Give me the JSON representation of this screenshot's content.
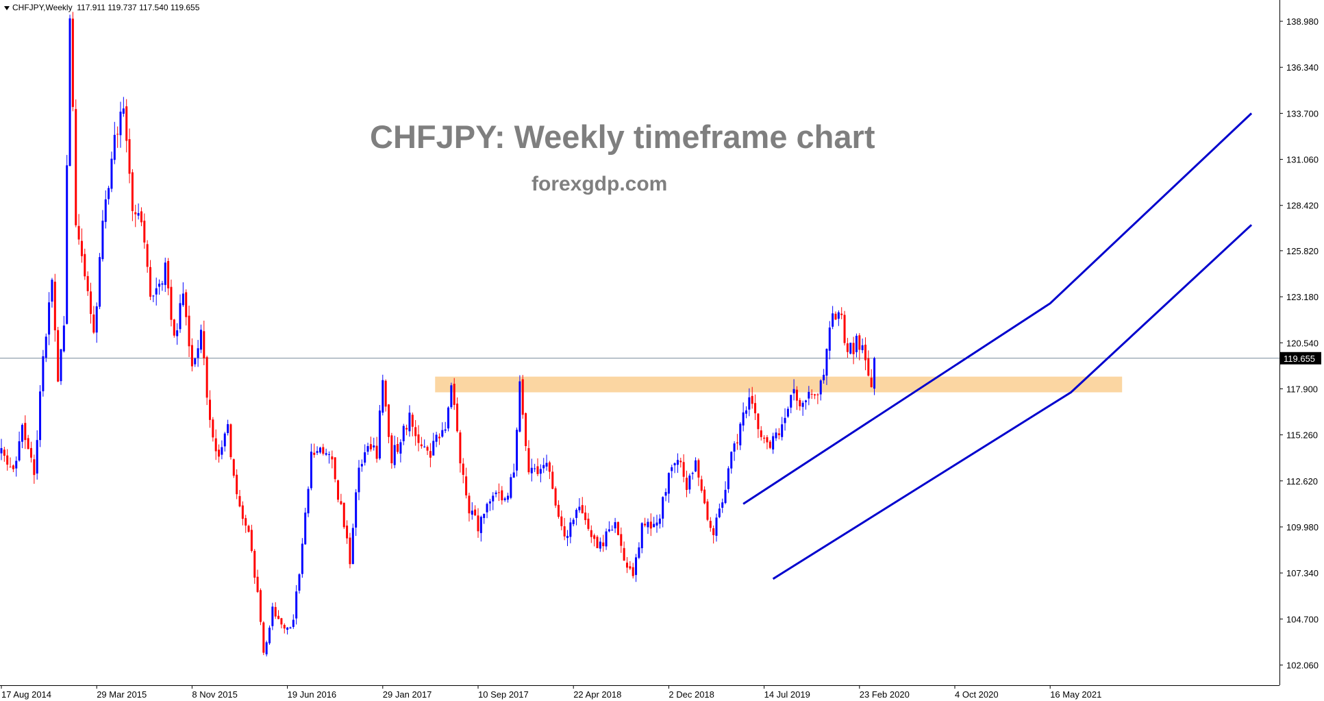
{
  "header": {
    "symbol": "CHFJPY,Weekly",
    "open": "117.911",
    "high": "119.737",
    "low": "117.540",
    "close": "119.655"
  },
  "watermark": {
    "title": "CHFJPY: Weekly timeframe chart",
    "subtitle": "forexgdp.com"
  },
  "chart_data": {
    "type": "candlestick",
    "symbol": "CHFJPY",
    "timeframe": "Weekly",
    "y_ticks": [
      "138.980",
      "136.340",
      "133.700",
      "131.060",
      "128.420",
      "125.820",
      "123.180",
      "120.540",
      "117.900",
      "115.260",
      "112.620",
      "109.980",
      "107.340",
      "104.700",
      "102.060"
    ],
    "ylim": [
      100.9,
      140.2
    ],
    "x_ticks": [
      "17 Aug 2014",
      "29 Mar 2015",
      "8 Nov 2015",
      "19 Jun 2016",
      "29 Jan 2017",
      "10 Sep 2017",
      "22 Apr 2018",
      "2 Dec 2018",
      "14 Jul 2019",
      "23 Feb 2020",
      "4 Oct 2020",
      "16 May 2021"
    ],
    "current_price": "119.655",
    "colors": {
      "bull": "#0000ff",
      "bear": "#ff0000",
      "channel": "#0000cd",
      "zone": "#fbd6a2",
      "price_line": "#778899",
      "price_tag_bg": "#000000"
    },
    "anchors": [
      [
        0,
        114.5
      ],
      [
        4,
        113.0
      ],
      [
        7,
        116.0
      ],
      [
        11,
        113.0
      ],
      [
        14,
        119.5
      ],
      [
        17,
        124.0
      ],
      [
        19,
        118.0
      ],
      [
        21,
        121.5
      ],
      [
        23,
        139.5
      ],
      [
        25,
        127.5
      ],
      [
        28,
        124.0
      ],
      [
        31,
        121.0
      ],
      [
        34,
        127.0
      ],
      [
        38,
        132.0
      ],
      [
        41,
        134.0
      ],
      [
        44,
        128.5
      ],
      [
        47,
        128.0
      ],
      [
        50,
        123.0
      ],
      [
        53,
        123.5
      ],
      [
        55,
        125.0
      ],
      [
        58,
        121.0
      ],
      [
        61,
        123.0
      ],
      [
        64,
        119.0
      ],
      [
        67,
        121.5
      ],
      [
        70,
        116.0
      ],
      [
        73,
        114.0
      ],
      [
        76,
        115.5
      ],
      [
        80,
        111.0
      ],
      [
        83,
        109.5
      ],
      [
        86,
        106.0
      ],
      [
        88,
        102.5
      ],
      [
        91,
        105.5
      ],
      [
        95,
        104.0
      ],
      [
        98,
        104.5
      ],
      [
        101,
        109.0
      ],
      [
        104,
        114.0
      ],
      [
        108,
        114.5
      ],
      [
        111,
        113.5
      ],
      [
        114,
        111.0
      ],
      [
        117,
        108.0
      ],
      [
        120,
        113.5
      ],
      [
        123,
        115.0
      ],
      [
        126,
        114.0
      ],
      [
        128,
        118.5
      ],
      [
        131,
        114.0
      ],
      [
        134,
        115.0
      ],
      [
        137,
        116.5
      ],
      [
        140,
        115.0
      ],
      [
        143,
        114.0
      ],
      [
        146,
        115.0
      ],
      [
        149,
        116.0
      ],
      [
        151,
        118.5
      ],
      [
        154,
        114.0
      ],
      [
        157,
        111.0
      ],
      [
        160,
        110.0
      ],
      [
        163,
        111.0
      ],
      [
        166,
        112.0
      ],
      [
        169,
        111.5
      ],
      [
        172,
        113.0
      ],
      [
        174,
        118.0
      ],
      [
        177,
        113.5
      ],
      [
        180,
        113.0
      ],
      [
        183,
        114.0
      ],
      [
        186,
        111.5
      ],
      [
        189,
        109.5
      ],
      [
        191,
        110.0
      ],
      [
        194,
        111.0
      ],
      [
        197,
        110.0
      ],
      [
        200,
        108.5
      ],
      [
        203,
        109.5
      ],
      [
        206,
        110.0
      ],
      [
        209,
        108.0
      ],
      [
        212,
        107.5
      ],
      [
        215,
        110.0
      ],
      [
        218,
        110.0
      ],
      [
        221,
        110.5
      ],
      [
        224,
        113.0
      ],
      [
        227,
        114.0
      ],
      [
        230,
        112.5
      ],
      [
        233,
        113.5
      ],
      [
        236,
        111.0
      ],
      [
        239,
        109.5
      ],
      [
        242,
        111.5
      ],
      [
        245,
        114.0
      ],
      [
        248,
        115.5
      ],
      [
        251,
        117.5
      ],
      [
        254,
        116.0
      ],
      [
        257,
        114.5
      ],
      [
        260,
        115.0
      ],
      [
        263,
        116.5
      ],
      [
        266,
        117.5
      ],
      [
        269,
        117.0
      ],
      [
        272,
        117.5
      ],
      [
        275,
        118.0
      ],
      [
        278,
        121.5
      ],
      [
        281,
        122.5
      ],
      [
        284,
        120.0
      ],
      [
        287,
        120.5
      ],
      [
        290,
        120.0
      ],
      [
        292,
        117.9
      ],
      [
        293,
        119.655
      ]
    ],
    "channel": {
      "upper": [
        [
          "2019-05-26",
          111.3
        ],
        [
          "2021-05-16",
          122.8
        ],
        [
          "2022-09-01",
          133.7
        ]
      ],
      "lower": [
        [
          "2019-08-04",
          107.0
        ],
        [
          "2021-07-04",
          117.7
        ],
        [
          "2022-09-01",
          127.3
        ]
      ]
    },
    "resistance_zone": {
      "x_from": "2017-06-01",
      "x_to": "2021-11-01",
      "y_low": 117.7,
      "y_high": 118.6
    }
  }
}
